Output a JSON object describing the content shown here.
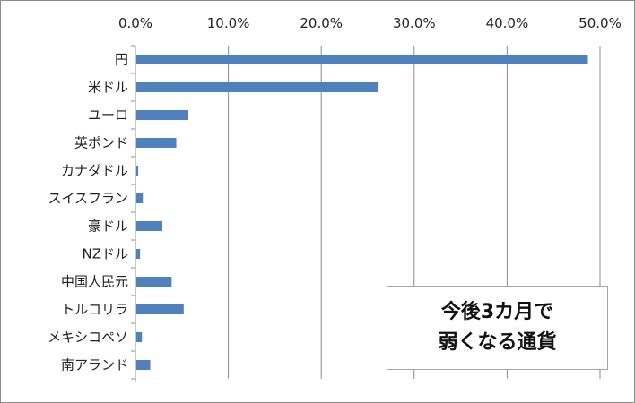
{
  "chart_data": {
    "type": "bar",
    "orientation": "horizontal",
    "title_lines": [
      "今後3カ月で",
      "弱くなる通貨"
    ],
    "categories": [
      "円",
      "米ドル",
      "ユーロ",
      "英ポンド",
      "カナダドル",
      "スイスフラン",
      "豪ドル",
      "NZドル",
      "中国人民元",
      "トルコリラ",
      "メキシコペソ",
      "南アランド"
    ],
    "values": [
      48.6,
      26.0,
      5.6,
      4.3,
      0.2,
      0.7,
      2.8,
      0.4,
      3.8,
      5.1,
      0.6,
      1.5
    ],
    "xlim": [
      0,
      50
    ],
    "xticks": [
      "0.0%",
      "10.0%",
      "20.0%",
      "30.0%",
      "40.0%",
      "50.0%"
    ],
    "grid": true,
    "bar_color": "#4f81bd"
  }
}
